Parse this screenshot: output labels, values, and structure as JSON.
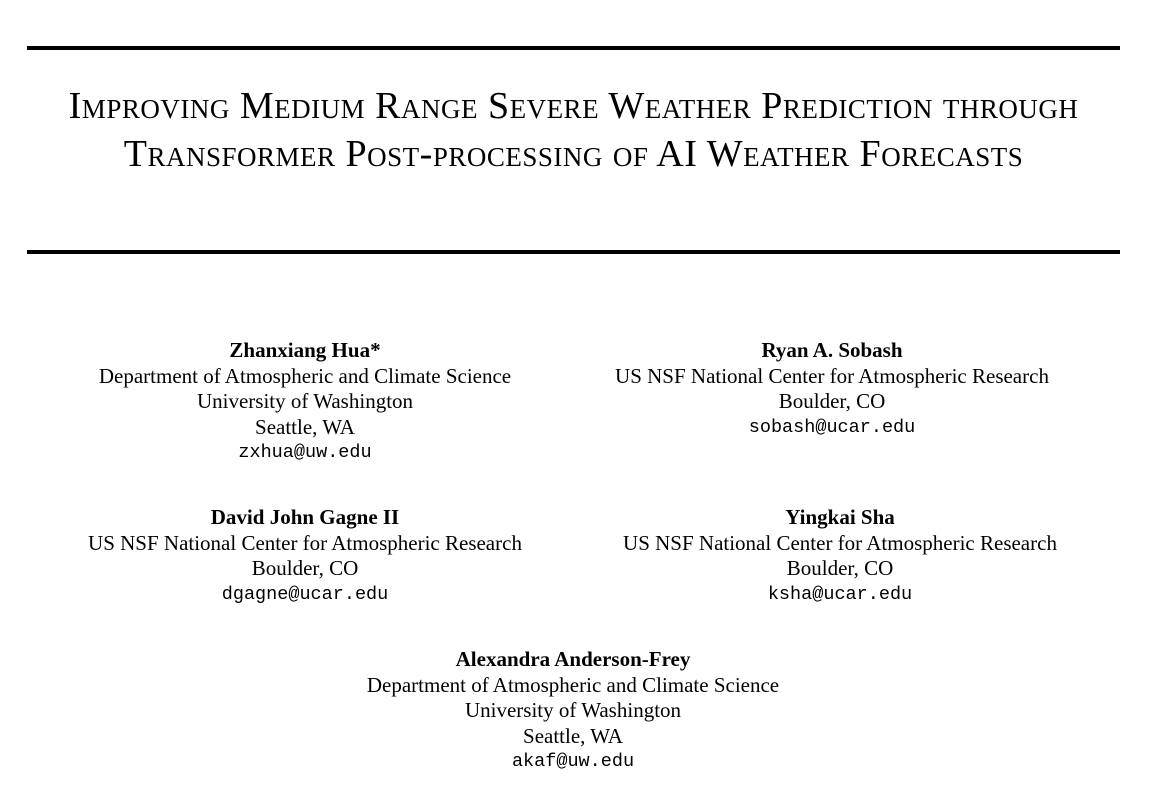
{
  "title": "Improving Medium Range Severe Weather Prediction through Transformer Post-processing of AI Weather Forecasts",
  "authors": [
    {
      "name": "Zhanxiang Hua*",
      "affiliation_lines": [
        "Department of Atmospheric and Climate Science",
        "University of Washington",
        "Seattle, WA"
      ],
      "email": "zxhua@uw.edu"
    },
    {
      "name": "Ryan A. Sobash",
      "affiliation_lines": [
        "US NSF National Center for Atmospheric Research",
        "Boulder, CO"
      ],
      "email": "sobash@ucar.edu"
    },
    {
      "name": "David John Gagne II",
      "affiliation_lines": [
        "US NSF National Center for Atmospheric Research",
        "Boulder, CO"
      ],
      "email": "dgagne@ucar.edu"
    },
    {
      "name": "Yingkai Sha",
      "affiliation_lines": [
        "US NSF National Center for Atmospheric Research",
        "Boulder, CO"
      ],
      "email": "ksha@ucar.edu"
    },
    {
      "name": "Alexandra Anderson-Frey",
      "affiliation_lines": [
        "Department of Atmospheric and Climate Science",
        "University of Washington",
        "Seattle, WA"
      ],
      "email": "akaf@uw.edu"
    }
  ]
}
